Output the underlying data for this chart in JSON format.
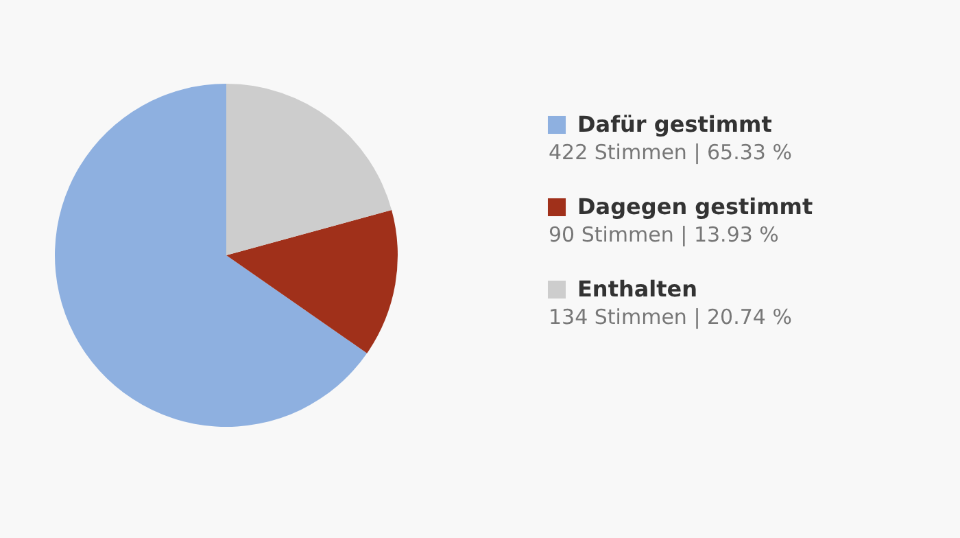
{
  "chart_data": {
    "type": "pie",
    "categories": [
      "Dafür gestimmt",
      "Dagegen gestimmt",
      "Enthalten"
    ],
    "values": [
      422,
      90,
      134
    ],
    "value_labels": [
      "422 Stimmen | 65.33 %",
      "90 Stimmen | 13.93 %",
      "134 Stimmen | 20.74 %"
    ],
    "colors": [
      "#8eb0e0",
      "#a0301a",
      "#cdcdcd"
    ],
    "legend": "right"
  }
}
